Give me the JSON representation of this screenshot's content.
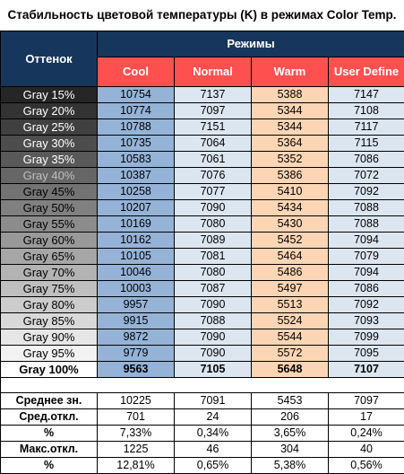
{
  "title": "Стабильность цветовой температуры (K) в режимах Color Temp.",
  "header": {
    "shade": "Оттенок",
    "modes": "Режимы",
    "columns": [
      "Cool",
      "Normal",
      "Warm",
      "User Define"
    ]
  },
  "colors": {
    "header_bg": "#16365c",
    "mode_bg": "#ff5050",
    "cool_bg": "#95b3d7",
    "normal_bg": "#dce6f1",
    "warm_bg": "#fcd5b4"
  },
  "rows": [
    {
      "label": "Gray 15%",
      "shade": "#262626",
      "fg": "#ffffff",
      "values": [
        "10754",
        "7137",
        "5388",
        "7147"
      ]
    },
    {
      "label": "Gray 20%",
      "shade": "#333333",
      "fg": "#ffffff",
      "values": [
        "10774",
        "7097",
        "5344",
        "7108"
      ]
    },
    {
      "label": "Gray 25%",
      "shade": "#404040",
      "fg": "#ffffff",
      "values": [
        "10788",
        "7151",
        "5344",
        "7117"
      ]
    },
    {
      "label": "Gray 30%",
      "shade": "#4d4d4d",
      "fg": "#ffffff",
      "values": [
        "10735",
        "7064",
        "5364",
        "7115"
      ]
    },
    {
      "label": "Gray 35%",
      "shade": "#595959",
      "fg": "#ffffff",
      "values": [
        "10583",
        "7061",
        "5352",
        "7086"
      ]
    },
    {
      "label": "Gray 40%",
      "shade": "#666666",
      "fg": "#bfbfbf",
      "values": [
        "10387",
        "7076",
        "5386",
        "7072"
      ]
    },
    {
      "label": "Gray 45%",
      "shade": "#737373",
      "fg": "#000000",
      "values": [
        "10258",
        "7077",
        "5410",
        "7092"
      ]
    },
    {
      "label": "Gray 50%",
      "shade": "#808080",
      "fg": "#000000",
      "values": [
        "10207",
        "7090",
        "5434",
        "7088"
      ]
    },
    {
      "label": "Gray 55%",
      "shade": "#8c8c8c",
      "fg": "#000000",
      "values": [
        "10169",
        "7080",
        "5430",
        "7088"
      ]
    },
    {
      "label": "Gray 60%",
      "shade": "#999999",
      "fg": "#000000",
      "values": [
        "10162",
        "7089",
        "5452",
        "7094"
      ]
    },
    {
      "label": "Gray 65%",
      "shade": "#a6a6a6",
      "fg": "#000000",
      "values": [
        "10105",
        "7081",
        "5464",
        "7079"
      ]
    },
    {
      "label": "Gray 70%",
      "shade": "#b3b3b3",
      "fg": "#000000",
      "values": [
        "10046",
        "7080",
        "5486",
        "7094"
      ]
    },
    {
      "label": "Gray 75%",
      "shade": "#bfbfbf",
      "fg": "#000000",
      "values": [
        "10003",
        "7087",
        "5497",
        "7086"
      ]
    },
    {
      "label": "Gray 80%",
      "shade": "#cccccc",
      "fg": "#000000",
      "values": [
        "9957",
        "7090",
        "5513",
        "7092"
      ]
    },
    {
      "label": "Gray 85%",
      "shade": "#d9d9d9",
      "fg": "#000000",
      "values": [
        "9915",
        "7088",
        "5524",
        "7093"
      ]
    },
    {
      "label": "Gray 90%",
      "shade": "#e6e6e6",
      "fg": "#000000",
      "values": [
        "9872",
        "7090",
        "5544",
        "7099"
      ]
    },
    {
      "label": "Gray 95%",
      "shade": "#f2f2f2",
      "fg": "#000000",
      "values": [
        "9779",
        "7090",
        "5572",
        "7095"
      ]
    },
    {
      "label": "Gray 100%",
      "shade": "#ffffff",
      "fg": "#000000",
      "bold": true,
      "values": [
        "9563",
        "7105",
        "5648",
        "7107"
      ]
    }
  ],
  "stats": [
    {
      "label": "Среднее зн.",
      "values": [
        "10225",
        "7091",
        "5453",
        "7097"
      ]
    },
    {
      "label": "Сред.откл.",
      "values": [
        "701",
        "24",
        "206",
        "17"
      ]
    },
    {
      "label": "%",
      "values": [
        "7,33%",
        "0,34%",
        "3,65%",
        "0,24%"
      ]
    },
    {
      "label": "Макс.откл.",
      "values": [
        "1225",
        "46",
        "304",
        "40"
      ]
    },
    {
      "label": "%",
      "values": [
        "12,81%",
        "0,65%",
        "5,38%",
        "0,56%"
      ]
    }
  ]
}
